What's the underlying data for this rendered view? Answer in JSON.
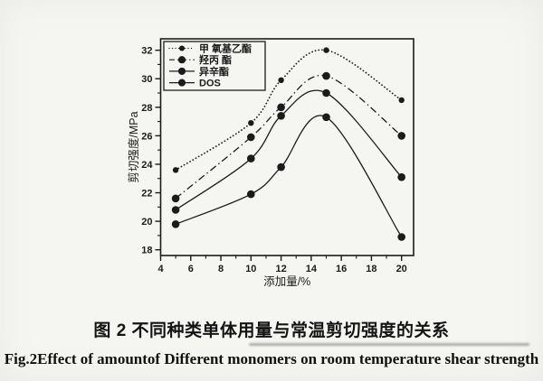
{
  "captions": {
    "chinese": "图 2 不同种类单体用量与常温剪切强度的关系",
    "english": "Fig.2Effect of amountof Different monomers on room temperature shear strength"
  },
  "colors": {
    "ink": "#1b1b1b",
    "paper": "#f5f5f1"
  },
  "chart_data": {
    "type": "line",
    "title": "",
    "xlabel": "添加量/%",
    "ylabel": "剪切强度/MPa",
    "x": [
      5,
      10,
      12,
      15,
      20
    ],
    "series": [
      {
        "name": "甲 氧基乙酯",
        "line_style": "dotted",
        "marker": "filled-circle",
        "marker_size": 3.2,
        "values": [
          23.6,
          26.9,
          29.9,
          32.0,
          28.5
        ]
      },
      {
        "name": "羟丙 酯",
        "line_style": "dash-dot",
        "marker": "filled-circle",
        "marker_size": 4.3,
        "values": [
          21.6,
          25.9,
          28.0,
          30.2,
          26.0
        ]
      },
      {
        "name": "异辛酯",
        "line_style": "solid",
        "marker": "filled-circle",
        "marker_size": 4.3,
        "values": [
          20.8,
          24.4,
          27.4,
          29.0,
          23.1
        ]
      },
      {
        "name": "DOS",
        "line_style": "solid",
        "marker": "filled-circle",
        "marker_size": 4.3,
        "values": [
          19.8,
          21.9,
          23.8,
          27.3,
          18.9
        ]
      }
    ],
    "xlim": [
      4,
      20.8
    ],
    "ylim": [
      17.6,
      32.8
    ],
    "x_ticks": [
      4,
      6,
      8,
      10,
      12,
      14,
      16,
      18,
      20
    ],
    "y_ticks": [
      18,
      20,
      22,
      24,
      26,
      28,
      30,
      32
    ],
    "x_minor_ticks": [
      5,
      7,
      9,
      11,
      13,
      15,
      17,
      19
    ],
    "y_minor_ticks": [
      19,
      21,
      23,
      25,
      27,
      29,
      31
    ],
    "grid": false,
    "legend_position": "top-left-inside"
  }
}
